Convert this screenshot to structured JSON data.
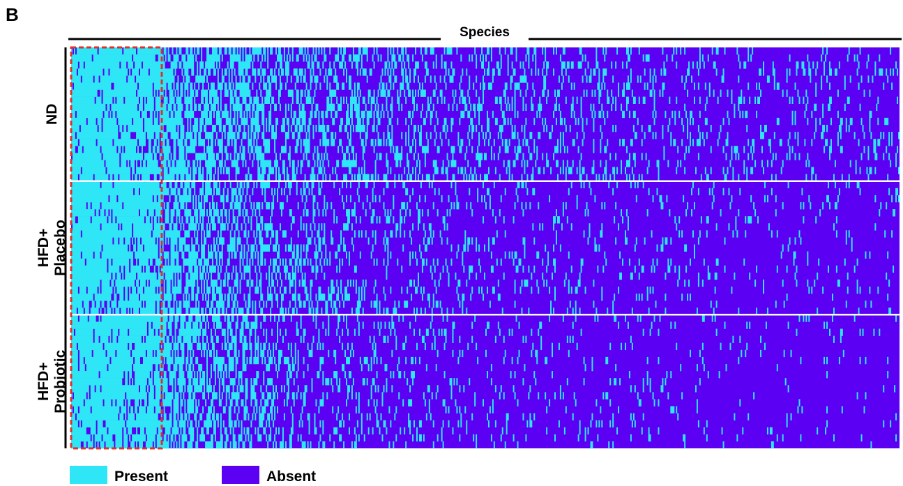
{
  "chart_data": {
    "type": "heatmap",
    "panel_label": "B",
    "xlabel": "Species",
    "groups": [
      {
        "lines": [
          "ND"
        ],
        "rows": 19
      },
      {
        "lines": [
          "HFD+",
          "Placebo"
        ],
        "rows": 19
      },
      {
        "lines": [
          "HFD+",
          "Probiotic"
        ],
        "rows": 19
      }
    ],
    "n_columns": 600,
    "values_legend": [
      {
        "label": "Present",
        "value": 1,
        "color": "#2ee6f6"
      },
      {
        "label": "Absent",
        "value": 0,
        "color": "#5b00f2"
      }
    ],
    "core_highlight": {
      "columns": [
        0,
        66
      ],
      "color": "#e0302a",
      "style": "dashed"
    },
    "presence_profile": {
      "description_free_params": true,
      "core_columns": 66,
      "core_density": 0.93,
      "decay_rate_by_group": [
        0.0045,
        0.0072,
        0.0085
      ],
      "floor_density_by_group": [
        0.08,
        0.05,
        0.035
      ],
      "seed": 20240521
    }
  }
}
